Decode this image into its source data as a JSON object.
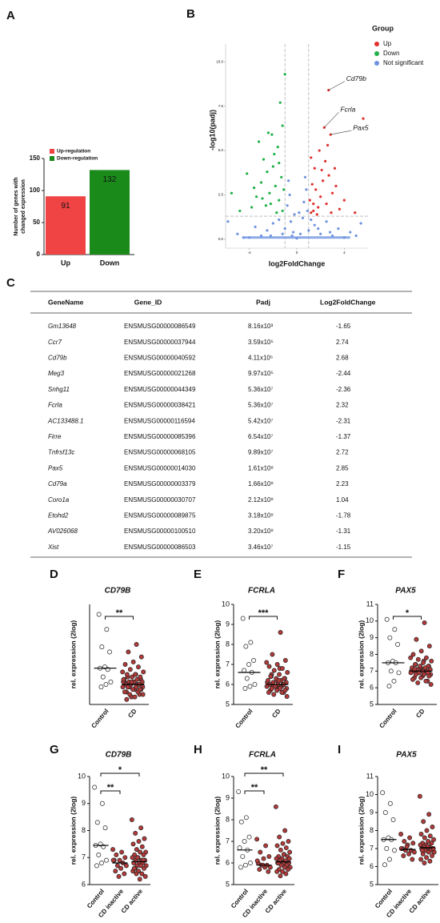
{
  "chart_data": [
    {
      "type": "bar",
      "panel_label": "A",
      "ylabel": [
        "Number of genes with",
        "changed expression"
      ],
      "categories": [
        "Up",
        "Down"
      ],
      "values": [
        91,
        132
      ],
      "colors": [
        "#f04444",
        "#1a8a1a"
      ],
      "legend": [
        "Up-regulation",
        "Down-regulation"
      ],
      "ylim": [
        0,
        150
      ],
      "yticks": [
        0,
        50,
        100,
        150
      ]
    },
    {
      "type": "volcano",
      "panel_label": "B",
      "xlabel": "log2FoldChange",
      "ylabel": "-log10(padj)",
      "legend_title": "Group",
      "xlim": [
        -6,
        6
      ],
      "ylim": [
        -0.5,
        11
      ],
      "xticks": [
        -4,
        0,
        4
      ],
      "yticks": [
        {
          "value": 0,
          "label": "0.0"
        },
        {
          "value": 2.5,
          "label": "2.5"
        },
        {
          "value": 5,
          "label": "5.0"
        },
        {
          "value": 7.5,
          "label": "7.5"
        },
        {
          "value": 10,
          "label": "10.0"
        }
      ],
      "thresholds": {
        "x": [
          -1,
          1
        ],
        "y": 1.3
      },
      "series": [
        {
          "name": "Up",
          "color": "#e03030",
          "x": [
            2.68,
            2.32,
            2.85,
            1.2,
            1.4,
            1.6,
            1.3,
            1.8,
            2.0,
            2.2,
            1.5,
            2.5,
            2.7,
            3.0,
            1.1,
            1.7,
            2.4,
            3.3,
            3.6,
            4.0,
            1.9,
            2.1,
            1.2,
            2.9,
            5.6,
            4.9,
            1.4,
            2.6,
            3.2
          ],
          "values": [
            8.4,
            6.3,
            5.9,
            1.5,
            2.0,
            2.8,
            3.1,
            1.8,
            2.4,
            3.3,
            4.0,
            2.0,
            3.6,
            2.6,
            2.2,
            1.4,
            4.4,
            3.0,
            1.7,
            2.2,
            5.0,
            3.9,
            4.6,
            1.5,
            6.8,
            1.5,
            1.6,
            5.3,
            4.0
          ]
        },
        {
          "name": "Down",
          "color": "#22b04a",
          "x": [
            -1.2,
            -1.5,
            -1.8,
            -2.0,
            -2.3,
            -1.3,
            -2.6,
            -3.0,
            -3.4,
            -1.6,
            -2.1,
            -1.1,
            -2.8,
            -3.8,
            -4.2,
            -1.4,
            -1.0,
            -2.4,
            -1.9,
            -3.2,
            -1.7,
            -2.5,
            -4.8,
            -5.5,
            -3.6,
            -1.2,
            -2.2,
            -2.9,
            -1.5
          ],
          "values": [
            1.6,
            2.2,
            3.0,
            4.1,
            2.6,
            3.5,
            1.9,
            3.2,
            2.4,
            5.2,
            5.9,
            2.8,
            4.5,
            1.8,
            3.7,
            7.7,
            9.3,
            6.0,
            4.8,
            5.5,
            1.5,
            3.8,
            1.6,
            2.6,
            2.9,
            6.4,
            2.0,
            2.3,
            4.3
          ]
        },
        {
          "name": "Not significant",
          "color": "#6f93e0",
          "x": [
            -4,
            -3,
            -2.5,
            -2,
            -1.5,
            -1,
            -0.8,
            -0.6,
            -0.5,
            -0.3,
            0,
            0.3,
            0.5,
            0.6,
            0.8,
            0.9,
            1,
            1.5,
            2,
            2.5,
            3,
            3.5,
            4,
            5,
            -5,
            -4.5,
            -3.5,
            -2.2,
            -1.2,
            -0.2,
            0.2,
            1.2,
            1.8,
            2.8,
            4.5,
            -0.7,
            0.7,
            -5.8,
            5.4,
            -0.4
          ],
          "values": [
            0.1,
            0.2,
            0.5,
            0.9,
            1.1,
            0.6,
            1.9,
            2.5,
            1.0,
            0.4,
            0.05,
            0.3,
            1.2,
            2.1,
            2.8,
            1.6,
            0.5,
            0.8,
            0.3,
            1.0,
            0.2,
            0.6,
            0.1,
            0.2,
            0.3,
            0.1,
            0.7,
            0.2,
            0.3,
            1.4,
            1.5,
            1.1,
            0.6,
            0.4,
            0.4,
            3.3,
            3.5,
            1.0,
            0.9,
            0.2
          ]
        }
      ],
      "annotations": [
        {
          "text": "Cd79b",
          "x": 2.68,
          "y": 8.4
        },
        {
          "text": "Fcrla",
          "x": 2.32,
          "y": 6.3
        },
        {
          "text": "Pax5",
          "x": 2.85,
          "y": 5.9
        }
      ]
    },
    {
      "type": "dotplot",
      "panel_label": "D",
      "title": "CD79B",
      "ylabel": "rel. expression (2log)",
      "categories": [
        "Control",
        "CD"
      ],
      "ylim": [
        6,
        10
      ],
      "yticks": [],
      "groups": [
        {
          "color": "#ffffff",
          "median": 7.45,
          "values": [
            9.6,
            9.0,
            8.3,
            8.1,
            7.5,
            7.45,
            7.4,
            7.1,
            6.9,
            6.8,
            6.7
          ]
        },
        {
          "color": "#b23a3a",
          "median": 6.8,
          "values": [
            7.3,
            7.2,
            7.1,
            7.0,
            6.9,
            6.9,
            6.8,
            6.7,
            6.7,
            6.6,
            6.5,
            6.4,
            6.3,
            6.9,
            8.4,
            8.1,
            7.9,
            7.7,
            7.6,
            7.5,
            7.4,
            7.3,
            7.2,
            7.2,
            7.1,
            7.1,
            7.0,
            7.0,
            6.9,
            6.9,
            6.9,
            6.8,
            6.8,
            6.8,
            6.7,
            6.7,
            6.7,
            6.6,
            6.6,
            6.5,
            6.5,
            6.4,
            6.4,
            6.3,
            6.2,
            6.6,
            6.9,
            7.0
          ]
        }
      ],
      "significance": [
        {
          "from": 0,
          "to": 1,
          "label": "**"
        }
      ]
    },
    {
      "type": "dotplot",
      "panel_label": "E",
      "title": "FCRLA",
      "ylabel": "rel. expression (2log)",
      "categories": [
        "Control",
        "CD"
      ],
      "ylim": [
        5,
        10
      ],
      "yticks": [
        5,
        6,
        7,
        8,
        9,
        10
      ],
      "groups": [
        {
          "color": "#ffffff",
          "median": 6.6,
          "values": [
            9.3,
            8.1,
            7.9,
            7.2,
            7.0,
            6.7,
            6.6,
            6.3,
            6.0,
            5.9,
            5.8
          ]
        },
        {
          "color": "#b23a3a",
          "median": 6.0,
          "values": [
            7.1,
            6.8,
            6.5,
            6.3,
            6.2,
            6.0,
            5.9,
            5.9,
            5.8,
            5.8,
            5.7,
            5.6,
            5.9,
            6.1,
            8.6,
            7.5,
            7.2,
            7.0,
            6.9,
            6.8,
            6.7,
            6.6,
            6.5,
            6.4,
            6.3,
            6.3,
            6.2,
            6.2,
            6.1,
            6.1,
            6.0,
            6.0,
            6.0,
            5.9,
            5.9,
            5.8,
            5.8,
            5.7,
            5.7,
            5.6,
            5.6,
            5.5,
            5.4,
            6.2,
            6.4,
            6.0
          ]
        }
      ],
      "significance": [
        {
          "from": 0,
          "to": 1,
          "label": "***"
        }
      ]
    },
    {
      "type": "dotplot",
      "panel_label": "F",
      "title": "PAX5",
      "ylabel": "rel. expression (2log)",
      "categories": [
        "Control",
        "CD"
      ],
      "ylim": [
        5,
        11
      ],
      "yticks": [
        5,
        6,
        7,
        8,
        9,
        10,
        11
      ],
      "groups": [
        {
          "color": "#ffffff",
          "median": 7.5,
          "values": [
            10.1,
            9.5,
            9.0,
            8.6,
            7.6,
            7.5,
            7.5,
            7.0,
            6.9,
            6.4,
            6.1
          ]
        },
        {
          "color": "#b23a3a",
          "median": 7.0,
          "values": [
            7.8,
            7.6,
            7.4,
            7.3,
            7.2,
            7.0,
            6.9,
            6.9,
            6.8,
            6.7,
            6.6,
            6.4,
            7.1,
            7.0,
            9.9,
            8.9,
            8.5,
            8.2,
            8.0,
            7.8,
            7.7,
            7.6,
            7.5,
            7.4,
            7.3,
            7.3,
            7.2,
            7.2,
            7.1,
            7.1,
            7.0,
            7.0,
            7.0,
            6.9,
            6.9,
            6.8,
            6.8,
            6.7,
            6.6,
            6.5,
            6.4,
            6.3,
            6.2,
            7.0,
            7.1,
            6.9
          ]
        }
      ],
      "significance": [
        {
          "from": 0,
          "to": 1,
          "label": "*"
        }
      ]
    },
    {
      "type": "dotplot",
      "panel_label": "G",
      "title": "CD79B",
      "ylabel": "rel. expression (2log)",
      "categories": [
        "Control",
        "CD inactive",
        "CD active"
      ],
      "ylim": [
        6,
        10
      ],
      "yticks": [
        6,
        7,
        8,
        9,
        10
      ],
      "groups": [
        {
          "color": "#ffffff",
          "median": 7.45,
          "values": [
            9.6,
            9.0,
            8.3,
            8.1,
            7.5,
            7.45,
            7.4,
            7.1,
            6.9,
            6.8,
            6.7
          ]
        },
        {
          "color": "#b23a3a",
          "median": 6.8,
          "values": [
            7.3,
            7.2,
            7.1,
            7.0,
            6.9,
            6.9,
            6.8,
            6.7,
            6.7,
            6.6,
            6.5,
            6.4,
            6.3,
            6.9
          ]
        },
        {
          "color": "#b23a3a",
          "median": 6.85,
          "values": [
            8.4,
            8.1,
            7.9,
            7.7,
            7.6,
            7.5,
            7.4,
            7.3,
            7.2,
            7.2,
            7.1,
            7.1,
            7.0,
            7.0,
            6.9,
            6.9,
            6.9,
            6.8,
            6.8,
            6.8,
            6.7,
            6.7,
            6.7,
            6.6,
            6.6,
            6.5,
            6.5,
            6.4,
            6.4,
            6.3,
            6.2,
            6.6,
            6.9,
            7.0
          ]
        }
      ],
      "significance": [
        {
          "from": 0,
          "to": 1,
          "label": "**"
        },
        {
          "from": 0,
          "to": 2,
          "label": "*"
        }
      ]
    },
    {
      "type": "dotplot",
      "panel_label": "H",
      "title": "FCRLA",
      "ylabel": "rel. expression (2log)",
      "categories": [
        "Control",
        "CD inactive",
        "CD active"
      ],
      "ylim": [
        5,
        10
      ],
      "yticks": [
        5,
        6,
        7,
        8,
        9,
        10
      ],
      "groups": [
        {
          "color": "#ffffff",
          "median": 6.6,
          "values": [
            9.3,
            8.1,
            7.9,
            7.2,
            7.0,
            6.7,
            6.6,
            6.3,
            6.0,
            5.9,
            5.8
          ]
        },
        {
          "color": "#b23a3a",
          "median": 5.9,
          "values": [
            7.1,
            6.8,
            6.5,
            6.3,
            6.2,
            6.0,
            5.9,
            5.9,
            5.8,
            5.8,
            5.7,
            5.6,
            5.9,
            6.1
          ]
        },
        {
          "color": "#b23a3a",
          "median": 6.05,
          "values": [
            8.6,
            7.5,
            7.2,
            7.0,
            6.9,
            6.8,
            6.7,
            6.6,
            6.5,
            6.4,
            6.3,
            6.3,
            6.2,
            6.2,
            6.1,
            6.1,
            6.0,
            6.0,
            6.0,
            5.9,
            5.9,
            5.8,
            5.8,
            5.7,
            5.7,
            5.6,
            5.6,
            5.5,
            5.4,
            6.2,
            6.4,
            6.0
          ]
        }
      ],
      "significance": [
        {
          "from": 0,
          "to": 1,
          "label": "**"
        },
        {
          "from": 0,
          "to": 2,
          "label": "**"
        }
      ]
    },
    {
      "type": "dotplot",
      "panel_label": "I",
      "title": "PAX5",
      "ylabel": "rel. expression (2log)",
      "categories": [
        "Control",
        "CD inactive",
        "CD active"
      ],
      "ylim": [
        5,
        11
      ],
      "yticks": [
        5,
        6,
        7,
        8,
        9,
        10,
        11
      ],
      "groups": [
        {
          "color": "#ffffff",
          "median": 7.5,
          "values": [
            10.1,
            9.5,
            9.0,
            8.6,
            7.6,
            7.5,
            7.5,
            7.0,
            6.9,
            6.4,
            6.1
          ]
        },
        {
          "color": "#b23a3a",
          "median": 6.95,
          "values": [
            7.8,
            7.6,
            7.4,
            7.3,
            7.2,
            7.0,
            6.9,
            6.9,
            6.8,
            6.7,
            6.6,
            6.4,
            7.1,
            7.0
          ]
        },
        {
          "color": "#b23a3a",
          "median": 7.05,
          "values": [
            9.9,
            8.9,
            8.5,
            8.2,
            8.0,
            7.8,
            7.7,
            7.6,
            7.5,
            7.4,
            7.3,
            7.3,
            7.2,
            7.2,
            7.1,
            7.1,
            7.0,
            7.0,
            7.0,
            6.9,
            6.9,
            6.8,
            6.8,
            6.7,
            6.6,
            6.5,
            6.4,
            6.3,
            6.2,
            7.0,
            7.1,
            6.9
          ]
        }
      ],
      "significance": []
    }
  ],
  "table": {
    "panel_label": "C",
    "columns": [
      "GeneName",
      "Gene_ID",
      "Padj",
      "Log2FoldChange"
    ],
    "rows": [
      [
        "Gm13648",
        "ENSMUSG00000086549",
        "8.16x10³",
        "-1.65"
      ],
      [
        "Ccr7",
        "ENSMUSG00000037944",
        "3.59x10⁵",
        "2.74"
      ],
      [
        "Cd79b",
        "ENSMUSG00000040592",
        "4.11x10⁵",
        "2.68"
      ],
      [
        "Meg3",
        "ENSMUSG00000021268",
        "9.97x10⁵",
        "-2.44"
      ],
      [
        "Snhg11",
        "ENSMUSG00000044349",
        "5.36x10⁷",
        "-2.36"
      ],
      [
        "Fcrla",
        "ENSMUSG00000038421",
        "5.36x10⁷",
        "2.32"
      ],
      [
        "AC133488.1",
        "ENSMUSG00000116594",
        "5.42x10⁷",
        "-2.31"
      ],
      [
        "Firre",
        "ENSMUSG00000085396",
        "6.54x10⁷",
        "-1.37"
      ],
      [
        "Tnfrsf13c",
        "ENSMUSG00000068105",
        "9.89x10⁷",
        "2.72"
      ],
      [
        "Pax5",
        "ENSMUSG00000014030",
        "1.61x10⁸",
        "2.85"
      ],
      [
        "Cd79a",
        "ENSMUSG00000003379",
        "1.66x10⁸",
        "2.23"
      ],
      [
        "Coro1a",
        "ENSMUSG00000030707",
        "2.12x10⁸",
        "1.04"
      ],
      [
        "Etohd2",
        "ENSMUSG00000089875",
        "3.18x10⁸",
        "-1.78"
      ],
      [
        "AV026068",
        "ENSMUSG00000100510",
        "3.20x10⁸",
        "-1.31"
      ],
      [
        "Xist",
        "ENSMUSG00000086503",
        "3.46x10⁷",
        "-1.15"
      ]
    ]
  }
}
